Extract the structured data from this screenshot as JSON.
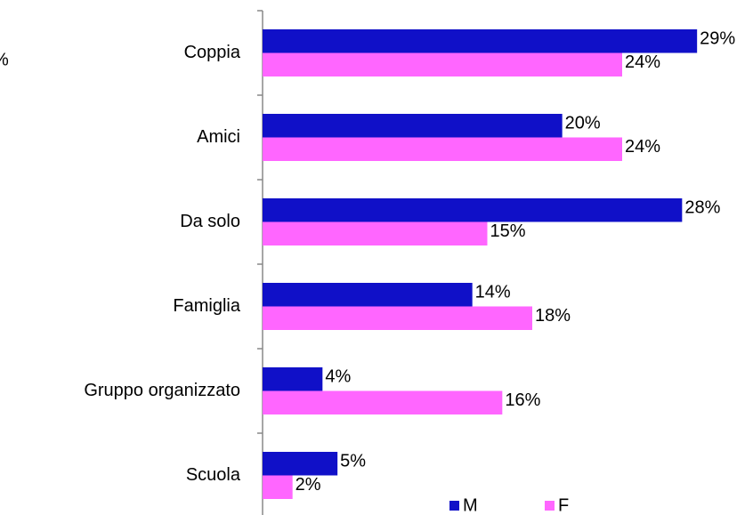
{
  "chart_data": {
    "type": "bar",
    "orientation": "horizontal",
    "annotation": "%",
    "categories": [
      "Coppia",
      "Amici",
      "Da solo",
      "Famiglia",
      "Gruppo organizzato",
      "Scuola"
    ],
    "series": [
      {
        "name": "M",
        "color": "#1010c8",
        "values": [
          29,
          20,
          28,
          14,
          4,
          5
        ],
        "value_labels": [
          "29%",
          "20%",
          "28%",
          "14%",
          "4%",
          "5%"
        ]
      },
      {
        "name": "F",
        "color": "#ff66ff",
        "values": [
          24,
          24,
          15,
          18,
          16,
          2
        ],
        "value_labels": [
          "24%",
          "24%",
          "15%",
          "18%",
          "16%",
          "2%"
        ]
      }
    ],
    "xlim": [
      0,
      30
    ],
    "legend": "bottom"
  }
}
